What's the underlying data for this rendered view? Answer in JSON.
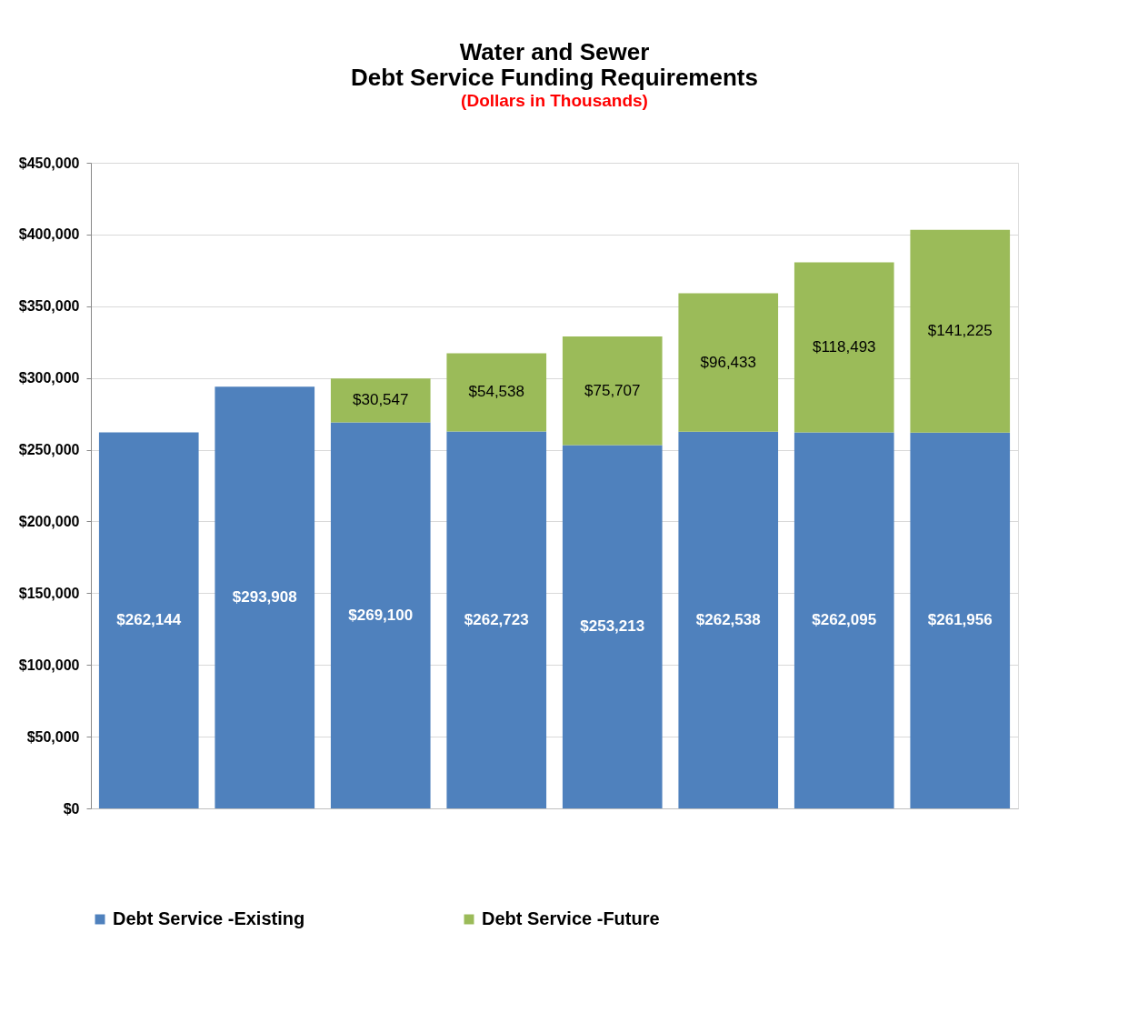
{
  "chart_data": {
    "type": "bar",
    "title": "Water and Sewer\nDebt Service Funding Requirements",
    "subtitle": "(Dollars in Thousands)",
    "categories": [
      null,
      null,
      null,
      null,
      null,
      null,
      null,
      null
    ],
    "stacked": true,
    "grid": "y",
    "legend": "bottom",
    "ylim": [
      0,
      450000
    ],
    "yticks": [
      {
        "value": 0,
        "label": "$0"
      },
      {
        "value": 50000,
        "label": "$50,000"
      },
      {
        "value": 100000,
        "label": "$100,000"
      },
      {
        "value": 150000,
        "label": "$150,000"
      },
      {
        "value": 200000,
        "label": "$200,000"
      },
      {
        "value": 250000,
        "label": "$250,000"
      },
      {
        "value": 300000,
        "label": "$300,000"
      },
      {
        "value": 350000,
        "label": "$350,000"
      },
      {
        "value": 400000,
        "label": "$400,000"
      },
      {
        "value": 450000,
        "label": "$450,000"
      }
    ],
    "series": [
      {
        "name": "Debt Service -Existing",
        "color": "#4f81bd",
        "values": [
          262144,
          293908,
          269100,
          262723,
          253213,
          262538,
          262095,
          261956
        ],
        "value_labels": [
          "$262,144",
          "$293,908",
          "$269,100",
          "$262,723",
          "$253,213",
          "$262,538",
          "$262,095",
          "$261,956"
        ]
      },
      {
        "name": "Debt Service -Future",
        "color": "#9bbb59",
        "values": [
          null,
          null,
          30547,
          54538,
          75707,
          96433,
          118493,
          141225
        ],
        "value_labels": [
          null,
          null,
          "$30,547",
          "$54,538",
          "$75,707",
          "$96,433",
          "$118,493",
          "$141,225"
        ]
      }
    ]
  }
}
